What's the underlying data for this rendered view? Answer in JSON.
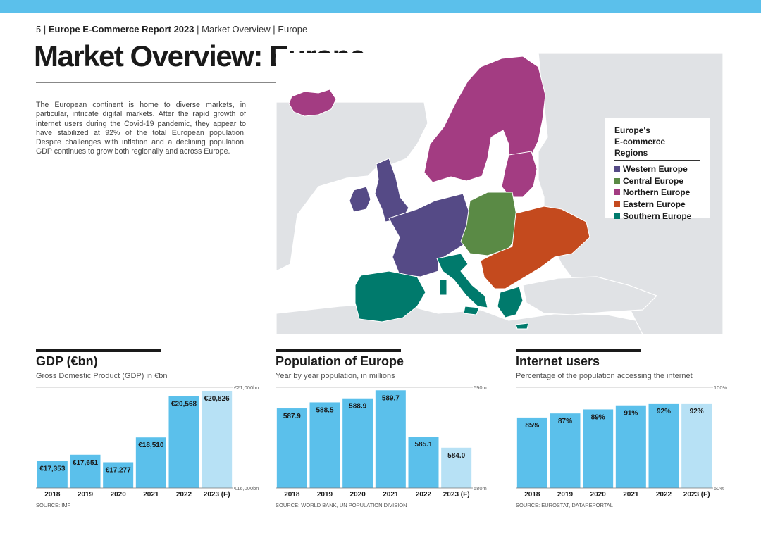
{
  "header": {
    "page_number": "5",
    "separator": "|",
    "report_title": "Europe E-Commerce Report 2023",
    "section": "Market Overview",
    "region": "Europe"
  },
  "title": "Market Overview: Europe",
  "intro": "The European continent is home to diverse markets, in particular, intricate digital markets. After the rapid growth of internet users during the Covid-19 pandemic, they appear to have stabilized at 92% of the total European population. Despite challenges with inflation and a declining population, GDP continues to grow both regionally and across Europe.",
  "map": {
    "legend_title_line1": "Europe's",
    "legend_title_line2": "E-commerce Regions",
    "regions": [
      {
        "label": "Western Europe",
        "color": "#554a86"
      },
      {
        "label": "Central Europe",
        "color": "#5a8a45"
      },
      {
        "label": "Northern Europe",
        "color": "#a33c82"
      },
      {
        "label": "Eastern Europe",
        "color": "#c44a1e"
      },
      {
        "label": "Southern Europe",
        "color": "#007a6c"
      }
    ],
    "land_color": "#e0e2e5",
    "sea_color": "#ffffff"
  },
  "colors": {
    "bar_actual": "#5bc0eb",
    "bar_forecast": "#b7e1f5",
    "accent": "#5bc0eb",
    "text": "#1a1a1a"
  },
  "charts": [
    {
      "title": "GDP (€bn)",
      "subtitle": "Gross Domestic Product (GDP) in €bn",
      "source": "SOURCE: IMF",
      "chart_data": {
        "type": "bar",
        "categories": [
          "2018",
          "2019",
          "2020",
          "2021",
          "2022",
          "2023 (F)"
        ],
        "values": [
          17353,
          17651,
          17277,
          18510,
          20568,
          20826
        ],
        "data_labels": [
          "€17,353",
          "€17,651",
          "€17,277",
          "€18,510",
          "€20,568",
          "€20,826"
        ],
        "forecast": [
          false,
          false,
          false,
          false,
          false,
          true
        ],
        "ylim": [
          16000,
          21000
        ],
        "ymin_label": "€16,000bn",
        "ymax_label": "€21,000bn",
        "title": "GDP (€bn)",
        "xlabel": "",
        "ylabel": ""
      }
    },
    {
      "title": "Population of Europe",
      "subtitle": "Year by year population, in millions",
      "source": "SOURCE: WORLD BANK, UN POPULATION DIVISION",
      "chart_data": {
        "type": "bar",
        "categories": [
          "2018",
          "2019",
          "2020",
          "2021",
          "2022",
          "2023 (F)"
        ],
        "values": [
          587.9,
          588.5,
          588.9,
          589.7,
          585.1,
          584.0
        ],
        "data_labels": [
          "587.9",
          "588.5",
          "588.9",
          "589.7",
          "585.1",
          "584.0"
        ],
        "forecast": [
          false,
          false,
          false,
          false,
          false,
          true
        ],
        "ylim": [
          580,
          590
        ],
        "ymin_label": "580m",
        "ymax_label": "590m",
        "title": "Population of Europe",
        "xlabel": "",
        "ylabel": ""
      }
    },
    {
      "title": "Internet users",
      "subtitle": "Percentage of the population accessing the internet",
      "source": "SOURCE: EUROSTAT, DATAREPORTAL",
      "chart_data": {
        "type": "bar",
        "categories": [
          "2018",
          "2019",
          "2020",
          "2021",
          "2022",
          "2023 (F)"
        ],
        "values": [
          85,
          87,
          89,
          91,
          92,
          92
        ],
        "data_labels": [
          "85%",
          "87%",
          "89%",
          "91%",
          "92%",
          "92%"
        ],
        "forecast": [
          false,
          false,
          false,
          false,
          false,
          true
        ],
        "ylim": [
          50,
          100
        ],
        "ymin_label": "50%",
        "ymax_label": "100%",
        "title": "Internet users",
        "xlabel": "",
        "ylabel": ""
      }
    }
  ]
}
